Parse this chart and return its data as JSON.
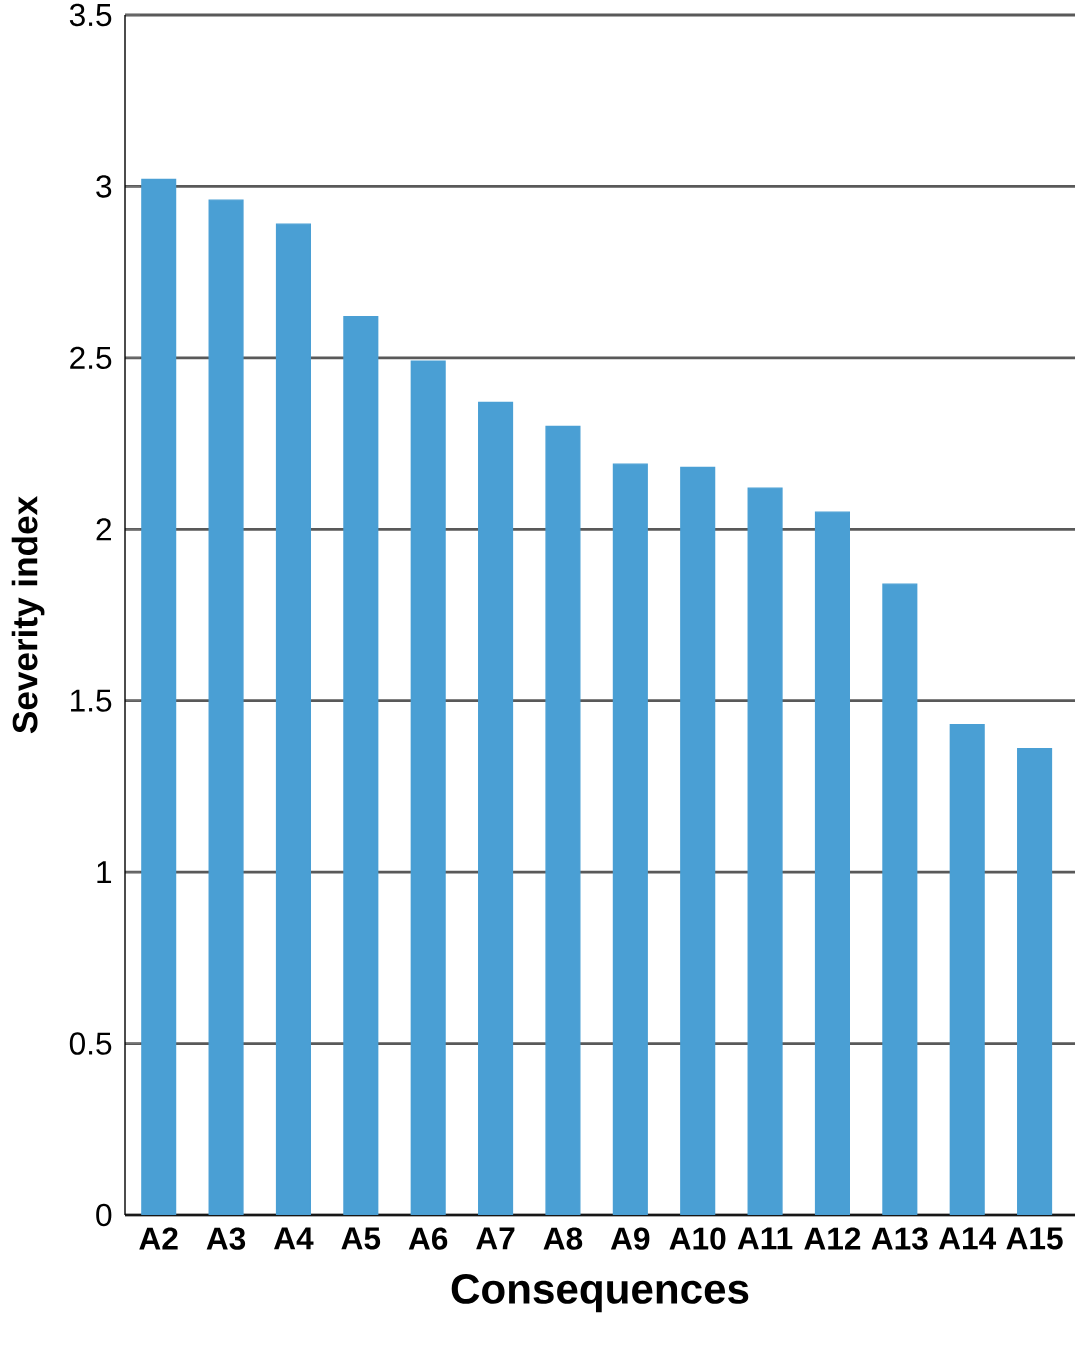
{
  "chart_data": {
    "type": "bar",
    "xlabel": "Consequences",
    "ylabel": "Severity index",
    "categories": [
      "A2",
      "A3",
      "A4",
      "A5",
      "A6",
      "A7",
      "A8",
      "A9",
      "A10",
      "A11",
      "A12",
      "A13",
      "A14",
      "A15"
    ],
    "values": [
      3.02,
      2.96,
      2.89,
      2.62,
      2.49,
      2.37,
      2.3,
      2.19,
      2.18,
      2.12,
      2.05,
      1.84,
      1.43,
      1.36
    ],
    "color": "#4a9fd4",
    "ylim": [
      0,
      3.5
    ],
    "yticks": [
      0,
      0.5,
      1,
      1.5,
      2,
      2.5,
      3,
      3.5
    ],
    "grid": "y"
  }
}
